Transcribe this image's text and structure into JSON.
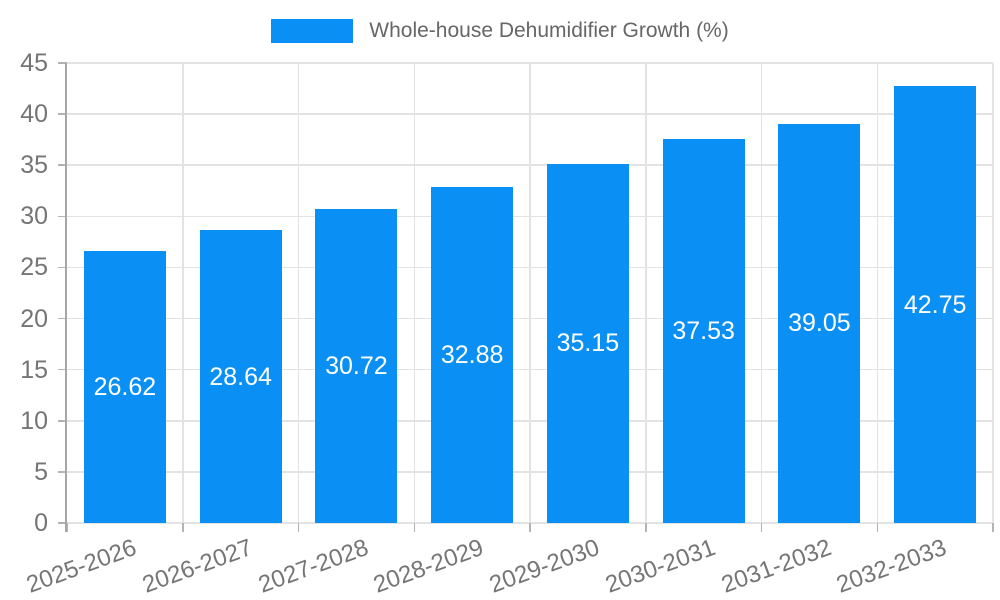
{
  "legend": {
    "label": "Whole-house Dehumidifier Growth (%)"
  },
  "chart_data": {
    "type": "bar",
    "title": "Whole-house Dehumidifier Growth (%)",
    "categories": [
      "2025-2026",
      "2026-2027",
      "2027-2028",
      "2028-2029",
      "2029-2030",
      "2030-2031",
      "2031-2032",
      "2032-2033"
    ],
    "values": [
      26.62,
      28.64,
      30.72,
      32.88,
      35.15,
      37.53,
      39.05,
      42.75
    ],
    "value_labels": [
      "26.62",
      "28.64",
      "30.72",
      "32.88",
      "35.15",
      "37.53",
      "39.05",
      "42.75"
    ],
    "xlabel": "",
    "ylabel": "",
    "ylim": [
      0,
      45
    ],
    "yticks": [
      0,
      5,
      10,
      15,
      20,
      25,
      30,
      35,
      40,
      45
    ],
    "grid": true,
    "legend_position": "top-center",
    "x_tick_rotation_deg": -20,
    "value_label_position": "center-of-bar"
  },
  "colors": {
    "bar": "#0a90f5",
    "grid": "#e3e3e3",
    "axis": "#a6a6a6",
    "tick": "#b3b3b3",
    "axis_text": "#757575",
    "legend_text": "#666666",
    "value_text": "#ffffff",
    "background": "#ffffff"
  }
}
